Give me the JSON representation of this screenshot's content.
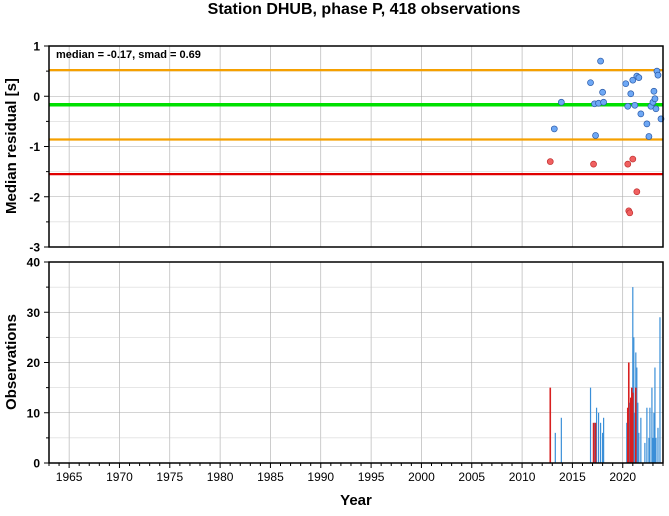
{
  "title": "Station DHUB, phase P, 418 observations",
  "xlabel": "Year",
  "colors": {
    "median_line": "#00e000",
    "smad_band": "#f5a000",
    "cutoff": "#e00000",
    "normal_point": "#6ea8f5",
    "outlier_point": "#f06060",
    "normal_bar": "#3a8fd8",
    "outlier_bar": "#d82020",
    "grid": "#aaaaaa"
  },
  "chart_data": [
    {
      "type": "scatter",
      "annotation": "median = -0.17, smad = 0.69",
      "ylabel": "Median residual [s]",
      "xlim": [
        1963,
        2024
      ],
      "ylim": [
        -3,
        1
      ],
      "x_ticks": [
        1965,
        1970,
        1975,
        1980,
        1985,
        1990,
        1995,
        2000,
        2005,
        2010,
        2015,
        2020
      ],
      "y_ticks": [
        -3,
        -2,
        -1,
        0,
        1
      ],
      "grid": true,
      "reference_lines": [
        {
          "name": "median",
          "value": -0.17
        },
        {
          "name": "upper",
          "value": 0.52
        },
        {
          "name": "lower",
          "value": -0.86
        },
        {
          "name": "cutoff",
          "value": -1.55
        }
      ],
      "series": [
        {
          "kind": "normal",
          "points": [
            [
              2013.2,
              -0.65
            ],
            [
              2013.9,
              -0.12
            ],
            [
              2016.8,
              0.27
            ],
            [
              2017.2,
              -0.15
            ],
            [
              2017.3,
              -0.78
            ],
            [
              2017.6,
              -0.14
            ],
            [
              2017.8,
              0.7
            ],
            [
              2018.0,
              0.08
            ],
            [
              2018.1,
              -0.12
            ],
            [
              2020.3,
              0.25
            ],
            [
              2020.5,
              -0.2
            ],
            [
              2020.8,
              0.05
            ],
            [
              2021.0,
              0.32
            ],
            [
              2021.2,
              -0.18
            ],
            [
              2021.4,
              0.4
            ],
            [
              2021.6,
              0.37
            ],
            [
              2021.8,
              -0.35
            ],
            [
              2022.4,
              -0.55
            ],
            [
              2022.6,
              -0.8
            ],
            [
              2022.8,
              -0.2
            ],
            [
              2023.0,
              -0.12
            ],
            [
              2023.1,
              0.1
            ],
            [
              2023.2,
              -0.05
            ],
            [
              2023.3,
              -0.25
            ],
            [
              2023.4,
              0.5
            ],
            [
              2023.5,
              0.42
            ],
            [
              2023.8,
              -0.45
            ]
          ]
        },
        {
          "kind": "outlier",
          "points": [
            [
              2012.8,
              -1.3
            ],
            [
              2017.1,
              -1.35
            ],
            [
              2020.5,
              -1.35
            ],
            [
              2020.6,
              -2.28
            ],
            [
              2020.7,
              -2.32
            ],
            [
              2021.0,
              -1.25
            ],
            [
              2021.4,
              -1.9
            ]
          ]
        }
      ]
    },
    {
      "type": "bar",
      "ylabel": "Observations",
      "xlim": [
        1963,
        2024
      ],
      "ylim": [
        0,
        40
      ],
      "x_ticks": [
        1965,
        1970,
        1975,
        1980,
        1985,
        1990,
        1995,
        2000,
        2005,
        2010,
        2015,
        2020
      ],
      "y_ticks": [
        0,
        10,
        20,
        30,
        40
      ],
      "grid": true,
      "series": [
        {
          "kind": "normal",
          "bars": [
            [
              2013.3,
              6
            ],
            [
              2013.9,
              9
            ],
            [
              2016.8,
              15
            ],
            [
              2017.2,
              8
            ],
            [
              2017.4,
              11
            ],
            [
              2017.6,
              10
            ],
            [
              2017.8,
              8
            ],
            [
              2018.0,
              6
            ],
            [
              2018.1,
              9
            ],
            [
              2020.4,
              8
            ],
            [
              2020.7,
              12
            ],
            [
              2021.0,
              35
            ],
            [
              2021.1,
              25
            ],
            [
              2021.2,
              10
            ],
            [
              2021.3,
              22
            ],
            [
              2021.4,
              19
            ],
            [
              2021.5,
              12
            ],
            [
              2021.6,
              6
            ],
            [
              2021.8,
              9
            ],
            [
              2022.2,
              4
            ],
            [
              2022.4,
              11
            ],
            [
              2022.6,
              5
            ],
            [
              2022.7,
              11
            ],
            [
              2022.9,
              15
            ],
            [
              2023.0,
              5
            ],
            [
              2023.1,
              10
            ],
            [
              2023.2,
              19
            ],
            [
              2023.3,
              5
            ],
            [
              2023.5,
              7
            ],
            [
              2023.7,
              29
            ]
          ]
        },
        {
          "kind": "outlier",
          "bars": [
            [
              2012.8,
              15
            ],
            [
              2017.1,
              8
            ],
            [
              2017.3,
              8
            ],
            [
              2020.5,
              11
            ],
            [
              2020.6,
              20
            ],
            [
              2020.8,
              13
            ],
            [
              2020.9,
              15
            ],
            [
              2021.0,
              14
            ],
            [
              2021.3,
              15
            ]
          ]
        }
      ]
    }
  ]
}
